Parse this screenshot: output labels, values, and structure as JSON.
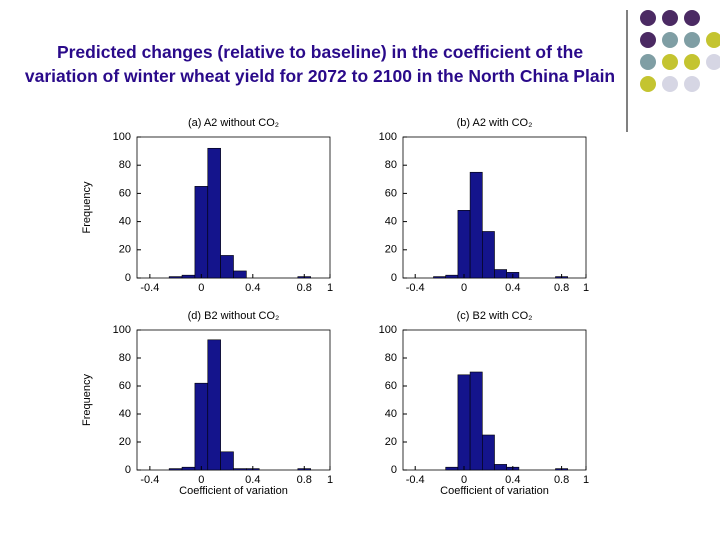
{
  "title": "Predicted changes (relative to baseline) in the coefficient of the variation of winter wheat yield for 2072 to 2100 in the North China Plain",
  "chart_data": [
    {
      "type": "histogram",
      "title": "(a) A2 without CO₂",
      "ylabel": "Frequency",
      "color": "#14148c",
      "bins": [
        -0.25,
        -0.15,
        -0.05,
        0.05,
        0.15,
        0.25,
        0.35,
        0.45,
        0.55,
        0.65,
        0.75,
        0.85
      ],
      "counts": [
        1,
        2,
        65,
        92,
        16,
        5,
        0,
        0,
        0,
        0,
        1
      ],
      "xlim": [
        -0.5,
        1
      ],
      "xticks": [
        -0.4,
        0,
        0.4,
        0.8,
        1
      ],
      "ylim": [
        0,
        100
      ],
      "yticks": [
        0,
        20,
        40,
        60,
        80,
        100
      ]
    },
    {
      "type": "histogram",
      "title": "(b) A2 with CO₂",
      "color": "#14148c",
      "bins": [
        -0.25,
        -0.15,
        -0.05,
        0.05,
        0.15,
        0.25,
        0.35,
        0.45,
        0.55,
        0.65,
        0.75,
        0.85
      ],
      "counts": [
        1,
        2,
        48,
        75,
        33,
        6,
        4,
        0,
        0,
        0,
        1
      ],
      "xlim": [
        -0.5,
        1
      ],
      "xticks": [
        -0.4,
        0,
        0.4,
        0.8,
        1
      ],
      "ylim": [
        0,
        100
      ],
      "yticks": [
        0,
        20,
        40,
        60,
        80,
        100
      ]
    },
    {
      "type": "histogram",
      "title": "(d) B2 without CO₂",
      "ylabel": "Frequency",
      "xlabel": "Coefficient of variation",
      "color": "#14148c",
      "bins": [
        -0.25,
        -0.15,
        -0.05,
        0.05,
        0.15,
        0.25,
        0.35,
        0.45,
        0.55,
        0.65,
        0.75,
        0.85
      ],
      "counts": [
        1,
        2,
        62,
        93,
        13,
        1,
        1,
        0,
        0,
        0,
        1
      ],
      "xlim": [
        -0.5,
        1
      ],
      "xticks": [
        -0.4,
        0,
        0.4,
        0.8,
        1
      ],
      "ylim": [
        0,
        100
      ],
      "yticks": [
        0,
        20,
        40,
        60,
        80,
        100
      ]
    },
    {
      "type": "histogram",
      "title": "(c) B2 with CO₂",
      "xlabel": "Coefficient of variation",
      "color": "#14148c",
      "bins": [
        -0.25,
        -0.15,
        -0.05,
        0.05,
        0.15,
        0.25,
        0.35,
        0.45,
        0.55,
        0.65,
        0.75,
        0.85
      ],
      "counts": [
        0,
        2,
        68,
        70,
        25,
        4,
        2,
        0,
        0,
        0,
        1
      ],
      "xlim": [
        -0.5,
        1
      ],
      "xticks": [
        -0.4,
        0,
        0.4,
        0.8,
        1
      ],
      "ylim": [
        0,
        100
      ],
      "yticks": [
        0,
        20,
        40,
        60,
        80,
        100
      ]
    }
  ]
}
